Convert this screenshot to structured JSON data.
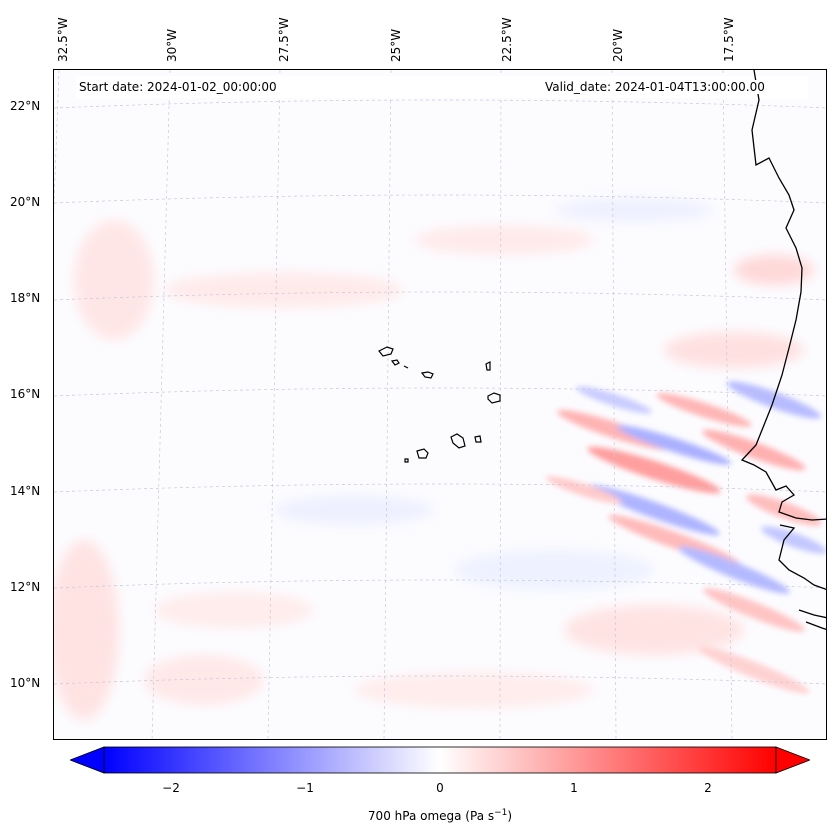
{
  "header": {
    "start_date": "Start date: 2024-01-02_00:00:00",
    "valid_date": "Valid_date: 2024-01-04T13:00:00.00"
  },
  "axes": {
    "longitude_labels": [
      "32.5°W",
      "30°W",
      "27.5°W",
      "25°W",
      "22.5°W",
      "20°W",
      "17.5°W"
    ],
    "latitude_labels": [
      "22°N",
      "20°N",
      "18°N",
      "16°N",
      "14°N",
      "12°N",
      "10°N"
    ]
  },
  "colorbar": {
    "label": "700 hPa omega (Pa s",
    "label_sup": "−1",
    "label_tail": ")",
    "ticks": [
      "−2",
      "−1",
      "0",
      "1",
      "2"
    ],
    "range": [
      -2.5,
      2.5
    ],
    "colormap": "bwr",
    "color_min": "#0000ff",
    "color_mid": "#ffffff",
    "color_max": "#ff0000",
    "extend": "both"
  },
  "map": {
    "variable": "700 hPa omega",
    "projection": "Lambert conformal",
    "gridlines": true,
    "coastline_color": "#000000"
  }
}
